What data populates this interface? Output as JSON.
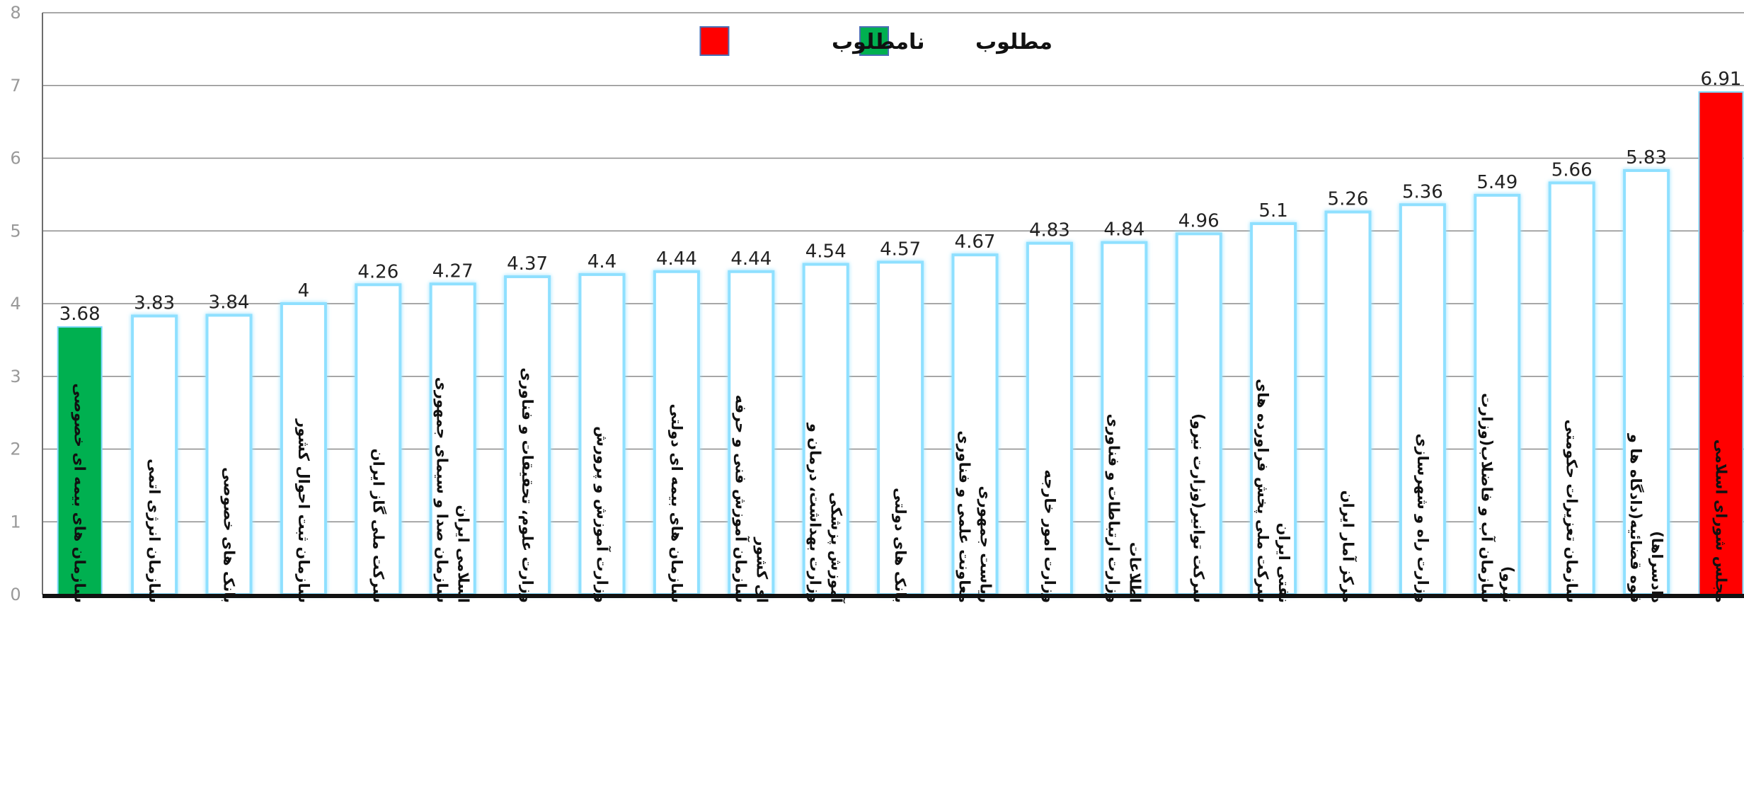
{
  "chart_data": {
    "type": "bar",
    "title": "",
    "xlabel": "",
    "ylabel": "",
    "ylim": [
      0,
      8
    ],
    "yticks": [
      "0",
      "1",
      "2",
      "3",
      "4",
      "5",
      "6",
      "7",
      "8"
    ],
    "grid": true,
    "legend_position": "top-center",
    "legend": [
      {
        "name": "مطلوب",
        "color": "#00b050"
      },
      {
        "name": "نامطلوب",
        "color": "#ff0000"
      }
    ],
    "default_bar": {
      "fill": "#ffffff",
      "border": "#8fe0ff"
    },
    "categories": [
      [
        "سازمان های بیمه ای خصوصی"
      ],
      [
        "سازمان انرژی اتمی"
      ],
      [
        "بانک های خصوصی"
      ],
      [
        "سازمان ثبت احوال کشور"
      ],
      [
        "شرکت ملی گاز ایران"
      ],
      [
        "سازمان صدا و سیمای جمهوری",
        "اسلامی ایران"
      ],
      [
        "وزارت علوم، تحقیقات و فناوری"
      ],
      [
        "وزارت آموزش و پرورش"
      ],
      [
        "سازمان های بیمه ای دولتی"
      ],
      [
        "سازمان آموزش فنی و حرفه",
        "ای کشور"
      ],
      [
        "وزارت بهداشت، درمان و",
        "آموزش پزشکی"
      ],
      [
        "بانک های دولتی"
      ],
      [
        "معاونت علمی و فناوری",
        "ریاست جمهوری"
      ],
      [
        "وزارت امور خارجه"
      ],
      [
        "وزارت ارتباطات و فناوری",
        "اطلاعات"
      ],
      [
        "شرکت توانیر(وزارت نیرو)"
      ],
      [
        "شرکت ملی پخش فراورده های",
        "نفتی ایران"
      ],
      [
        "مرکز آمار ایران"
      ],
      [
        "وزارت راه و شهرسازی"
      ],
      [
        "سازمان آب و فاضلاب(وزارت",
        "نیرو)"
      ],
      [
        "سازمان تعزیرات حکومتی"
      ],
      [
        "قوه قضائیه(دادگاه ها و",
        "دادسراها)"
      ],
      [
        "مجلس شورای اسلامی"
      ]
    ],
    "values": [
      3.68,
      3.83,
      3.84,
      4,
      4.26,
      4.27,
      4.37,
      4.4,
      4.44,
      4.44,
      4.54,
      4.57,
      4.67,
      4.83,
      4.84,
      4.96,
      5.1,
      5.26,
      5.36,
      5.49,
      5.66,
      5.83,
      6.91
    ],
    "value_labels": [
      "3.68",
      "3.83",
      "3.84",
      "4",
      "4.26",
      "4.27",
      "4.37",
      "4.4",
      "4.44",
      "4.44",
      "4.54",
      "4.57",
      "4.67",
      "4.83",
      "4.84",
      "4.96",
      "5.1",
      "5.26",
      "5.36",
      "5.49",
      "5.66",
      "5.83",
      "6.91"
    ],
    "highlight": [
      {
        "index": 0,
        "color": "#00b050",
        "legend": "مطلوب"
      },
      {
        "index": 22,
        "color": "#ff0000",
        "legend": "نامطلوب"
      }
    ]
  }
}
